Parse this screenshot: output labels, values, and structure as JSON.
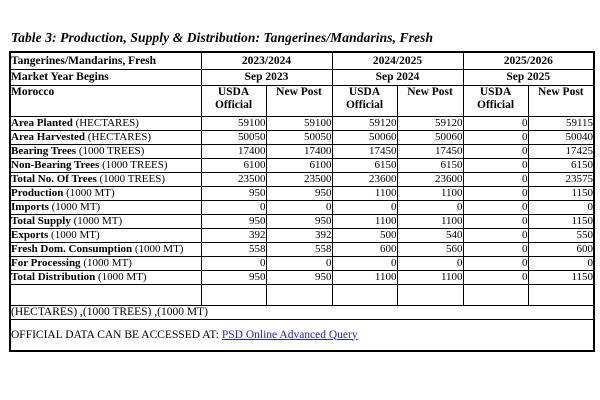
{
  "page": {
    "title": "Table 3: Production, Supply & Distribution: Tangerines/Mandarins, Fresh"
  },
  "table": {
    "header_row_1": {
      "label": "Tangerines/Mandarins, Fresh",
      "years": [
        "2023/2024",
        "2024/2025",
        "2025/2026"
      ]
    },
    "header_row_2": {
      "label": "Market Year Begins",
      "begins": [
        "Sep 2023",
        "Sep 2024",
        "Sep 2025"
      ]
    },
    "header_row_3": {
      "label": "Morocco",
      "subcolumns": [
        "USDA Official",
        "New Post",
        "USDA Official",
        "New Post",
        "USDA Official",
        "New Post"
      ]
    },
    "rows": [
      {
        "label": "Area Planted",
        "unit": "(HECTARES)",
        "values": [
          "59100",
          "59100",
          "59120",
          "59120",
          "0",
          "59115"
        ]
      },
      {
        "label": "Area Harvested",
        "unit": "(HECTARES)",
        "values": [
          "50050",
          "50050",
          "50060",
          "50060",
          "0",
          "50040"
        ]
      },
      {
        "label": "Bearing Trees",
        "unit": "(1000 TREES)",
        "values": [
          "17400",
          "17400",
          "17450",
          "17450",
          "0",
          "17425"
        ]
      },
      {
        "label": "Non-Bearing Trees",
        "unit": "(1000 TREES)",
        "values": [
          "6100",
          "6100",
          "6150",
          "6150",
          "0",
          "6150"
        ]
      },
      {
        "label": "Total No. Of Trees",
        "unit": "(1000 TREES)",
        "values": [
          "23500",
          "23500",
          "23600",
          "23600",
          "0",
          "23575"
        ]
      },
      {
        "label": "Production",
        "unit": "(1000 MT)",
        "values": [
          "950",
          "950",
          "1100",
          "1100",
          "0",
          "1150"
        ]
      },
      {
        "label": "Imports",
        "unit": "(1000 MT)",
        "values": [
          "0",
          "0",
          "0",
          "0",
          "0",
          "0"
        ]
      },
      {
        "label": "Total Supply",
        "unit": "(1000 MT)",
        "values": [
          "950",
          "950",
          "1100",
          "1100",
          "0",
          "1150"
        ]
      },
      {
        "label": "Exports",
        "unit": "(1000 MT)",
        "values": [
          "392",
          "392",
          "500",
          "540",
          "0",
          "550"
        ]
      },
      {
        "label": "Fresh Dom. Consumption",
        "unit": "(1000 MT)",
        "values": [
          "558",
          "558",
          "600",
          "560",
          "0",
          "600"
        ],
        "tall": true
      },
      {
        "label": "For Processing",
        "unit": "(1000 MT)",
        "values": [
          "0",
          "0",
          "0",
          "0",
          "0",
          "0"
        ]
      },
      {
        "label": "Total Distribution",
        "unit": "(1000 MT)",
        "values": [
          "950",
          "950",
          "1100",
          "1100",
          "0",
          "1150"
        ]
      }
    ],
    "units_note": "(HECTARES) ,(1000 TREES) ,(1000 MT)",
    "access_note": "OFFICIAL DATA CAN BE ACCESSED AT:",
    "access_link": "PSD Online Advanced Query"
  },
  "colors": {
    "link_blue": "#2323cb",
    "border_black": "#000000",
    "background": "#ffffff"
  }
}
